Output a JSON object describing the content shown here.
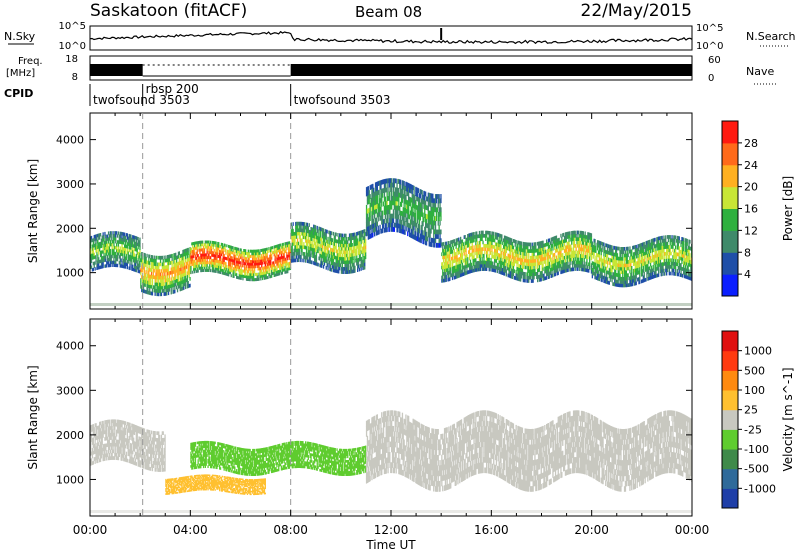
{
  "header": {
    "station": "Saskatoon (fitACF)",
    "beam": "Beam 08",
    "date": "22/May/2015"
  },
  "strip_labels": {
    "nsky": "N.Sky",
    "nsky_ticks": [
      "10^5",
      "10^0"
    ],
    "nsearch": "N.Search",
    "nsearch_ticks": [
      "10^5",
      "10^0"
    ],
    "freq_line1": "Freq.",
    "freq_line2": "[MHz]",
    "freq_ticks": [
      "18",
      "8"
    ],
    "nave": "Nave",
    "nave_ticks": [
      "60",
      "0"
    ],
    "cpid": "CPID"
  },
  "cpid_segments": [
    {
      "label": "twofsound 3503",
      "start_hour": 0
    },
    {
      "label": "rbsp 200",
      "start_hour": 2.1
    },
    {
      "label": "twofsound 3503",
      "start_hour": 8
    }
  ],
  "time_axis": {
    "label": "Time UT",
    "ticks": [
      "00:00",
      "04:00",
      "08:00",
      "12:00",
      "16:00",
      "20:00",
      "00:00"
    ]
  },
  "range_axis": {
    "label": "Slant Range [km]",
    "ticks": [
      "1000",
      "2000",
      "3000",
      "4000"
    ]
  },
  "power_colorbar": {
    "label": "Power [dB]",
    "ticks": [
      "4",
      "8",
      "12",
      "16",
      "20",
      "24",
      "28"
    ],
    "colors": [
      "#0b1fff",
      "#1f4fa8",
      "#3f8a6a",
      "#2fb03f",
      "#c8e636",
      "#ffb020",
      "#ff6a1a",
      "#ff1a10"
    ]
  },
  "velocity_colorbar": {
    "label": "Velocity [m s^-1]",
    "ticks": [
      "1000",
      "500",
      "100",
      "25",
      "-25",
      "-100",
      "-500",
      "-1000"
    ],
    "colors": [
      "#1f3fa8",
      "#2f6a9a",
      "#3f8a4a",
      "#5fcc2f",
      "#c8c8c0",
      "#ffc030",
      "#ff8a10",
      "#ff3a10",
      "#e01010"
    ]
  },
  "chart_data": [
    {
      "type": "heatmap",
      "title": "Power",
      "xlabel": "Time UT",
      "ylabel": "Slant Range [km]",
      "xlim": [
        0,
        24
      ],
      "ylim": [
        180,
        4600
      ],
      "quantity": "Power [dB]",
      "color_range": [
        0,
        30
      ],
      "bands": [
        {
          "t": [
            0,
            2
          ],
          "range_center": 1450,
          "range_width": 800,
          "value": 16
        },
        {
          "t": [
            2,
            4
          ],
          "range_center": 1100,
          "range_width": 900,
          "value": 22
        },
        {
          "t": [
            4,
            8
          ],
          "range_center": 1300,
          "range_width": 700,
          "value": 28
        },
        {
          "t": [
            8,
            11
          ],
          "range_center": 1600,
          "range_width": 900,
          "value": 18
        },
        {
          "t": [
            11,
            14
          ],
          "range_center": 2400,
          "range_width": 1200,
          "value": 14
        },
        {
          "t": [
            14,
            20
          ],
          "range_center": 1400,
          "range_width": 900,
          "value": 20
        },
        {
          "t": [
            20,
            24
          ],
          "range_center": 1300,
          "range_width": 900,
          "value": 18
        }
      ]
    },
    {
      "type": "heatmap",
      "title": "Velocity",
      "xlabel": "Time UT",
      "ylabel": "Slant Range [km]",
      "xlim": [
        0,
        24
      ],
      "ylim": [
        180,
        4600
      ],
      "quantity": "Velocity [m s^-1]",
      "color_range": [
        -1000,
        1000
      ],
      "bands": [
        {
          "t": [
            0,
            3
          ],
          "range_center": 1800,
          "range_width": 900,
          "value": 0
        },
        {
          "t": [
            3,
            7
          ],
          "range_center": 900,
          "range_width": 350,
          "value": 150
        },
        {
          "t": [
            4,
            11
          ],
          "range_center": 1500,
          "range_width": 600,
          "value": -300
        },
        {
          "t": [
            11,
            24
          ],
          "range_center": 1700,
          "range_width": 1400,
          "value": 0
        }
      ]
    }
  ]
}
